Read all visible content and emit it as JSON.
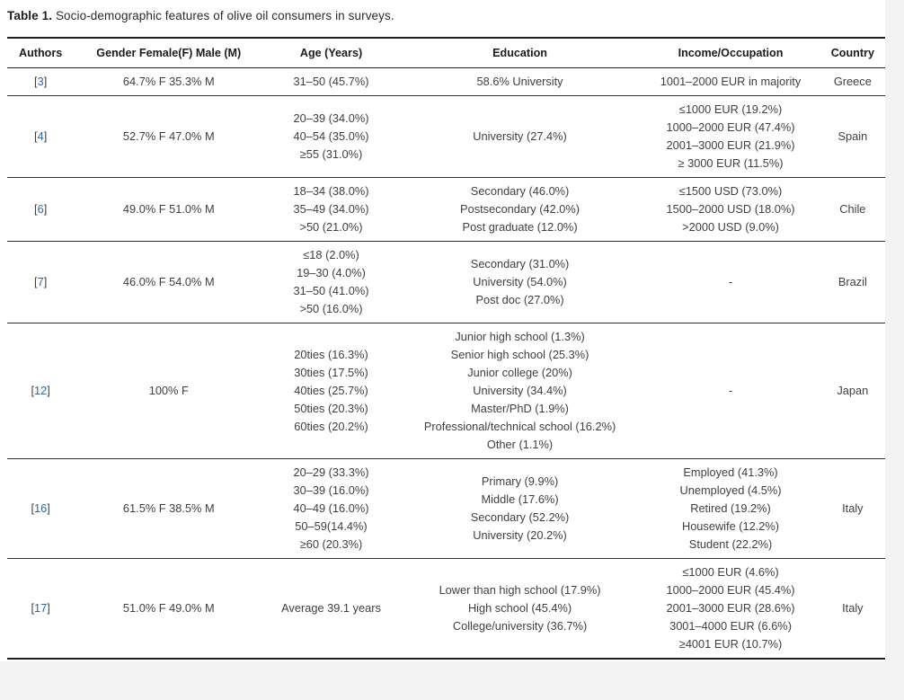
{
  "page": {
    "caption_label": "Table 1.",
    "caption_text": "Socio-demographic features of olive oil consumers in surveys.",
    "background_color": "#f4f4f5",
    "sheet_color": "#ffffff"
  },
  "table": {
    "link_color": "#2e66a4",
    "border_color": "#1f1f1f",
    "columns": [
      "Authors",
      "Gender Female(F) Male (M)",
      "Age (Years)",
      "Education",
      "Income/Occupation",
      "Country"
    ],
    "rows": [
      {
        "ref": "3",
        "gender": [
          "64.7% F 35.3% M"
        ],
        "age": [
          "31–50 (45.7%)"
        ],
        "education": [
          "58.6% University"
        ],
        "income": [
          "1001–2000 EUR in majority"
        ],
        "country": "Greece"
      },
      {
        "ref": "4",
        "gender": [
          "52.7% F 47.0% M"
        ],
        "age": [
          "20–39 (34.0%)",
          "40–54 (35.0%)",
          "≥55 (31.0%)"
        ],
        "education": [
          "University (27.4%)"
        ],
        "income": [
          "≤1000 EUR (19.2%)",
          "1000–2000 EUR (47.4%)",
          "2001–3000 EUR (21.9%)",
          "≥ 3000 EUR (11.5%)"
        ],
        "country": "Spain"
      },
      {
        "ref": "6",
        "gender": [
          "49.0% F 51.0% M"
        ],
        "age": [
          "18–34 (38.0%)",
          "35–49 (34.0%)",
          ">50 (21.0%)"
        ],
        "education": [
          "Secondary (46.0%)",
          "Postsecondary (42.0%)",
          "Post graduate (12.0%)"
        ],
        "income": [
          "≤1500 USD (73.0%)",
          "1500–2000 USD (18.0%)",
          ">2000 USD (9.0%)"
        ],
        "country": "Chile"
      },
      {
        "ref": "7",
        "gender": [
          "46.0% F 54.0% M"
        ],
        "age": [
          "≤18 (2.0%)",
          "19–30 (4.0%)",
          "31–50 (41.0%)",
          ">50 (16.0%)"
        ],
        "education": [
          "Secondary (31.0%)",
          "University (54.0%)",
          "Post doc (27.0%)"
        ],
        "income": [
          "-"
        ],
        "country": "Brazil"
      },
      {
        "ref": "12",
        "gender": [
          "100% F"
        ],
        "age": [
          "20ties (16.3%)",
          "30ties (17.5%)",
          "40ties (25.7%)",
          "50ties (20.3%)",
          "60ties (20.2%)"
        ],
        "education": [
          "Junior high school (1.3%)",
          "Senior high school (25.3%)",
          "Junior college (20%)",
          "University (34.4%)",
          "Master/PhD (1.9%)",
          "Professional/technical school (16.2%)",
          "Other (1.1%)"
        ],
        "income": [
          "-"
        ],
        "country": "Japan"
      },
      {
        "ref": "16",
        "gender": [
          "61.5% F 38.5% M"
        ],
        "age": [
          "20–29 (33.3%)",
          "30–39 (16.0%)",
          "40–49 (16.0%)",
          "50–59(14.4%)",
          "≥60 (20.3%)"
        ],
        "education": [
          "Primary (9.9%)",
          "Middle (17.6%)",
          "Secondary (52.2%)",
          "University (20.2%)"
        ],
        "income": [
          "Employed (41.3%)",
          "Unemployed (4.5%)",
          "Retired (19.2%)",
          "Housewife (12.2%)",
          "Student (22.2%)"
        ],
        "country": "Italy"
      },
      {
        "ref": "17",
        "gender": [
          "51.0% F 49.0% M"
        ],
        "age": [
          "Average 39.1 years"
        ],
        "education": [
          "Lower than high school (17.9%)",
          "High school (45.4%)",
          "College/university (36.7%)"
        ],
        "income": [
          "≤1000 EUR (4.6%)",
          "1000–2000 EUR (45.4%)",
          "2001–3000 EUR (28.6%)",
          "3001–4000 EUR (6.6%)",
          "≥4001 EUR (10.7%)"
        ],
        "country": "Italy"
      }
    ]
  }
}
